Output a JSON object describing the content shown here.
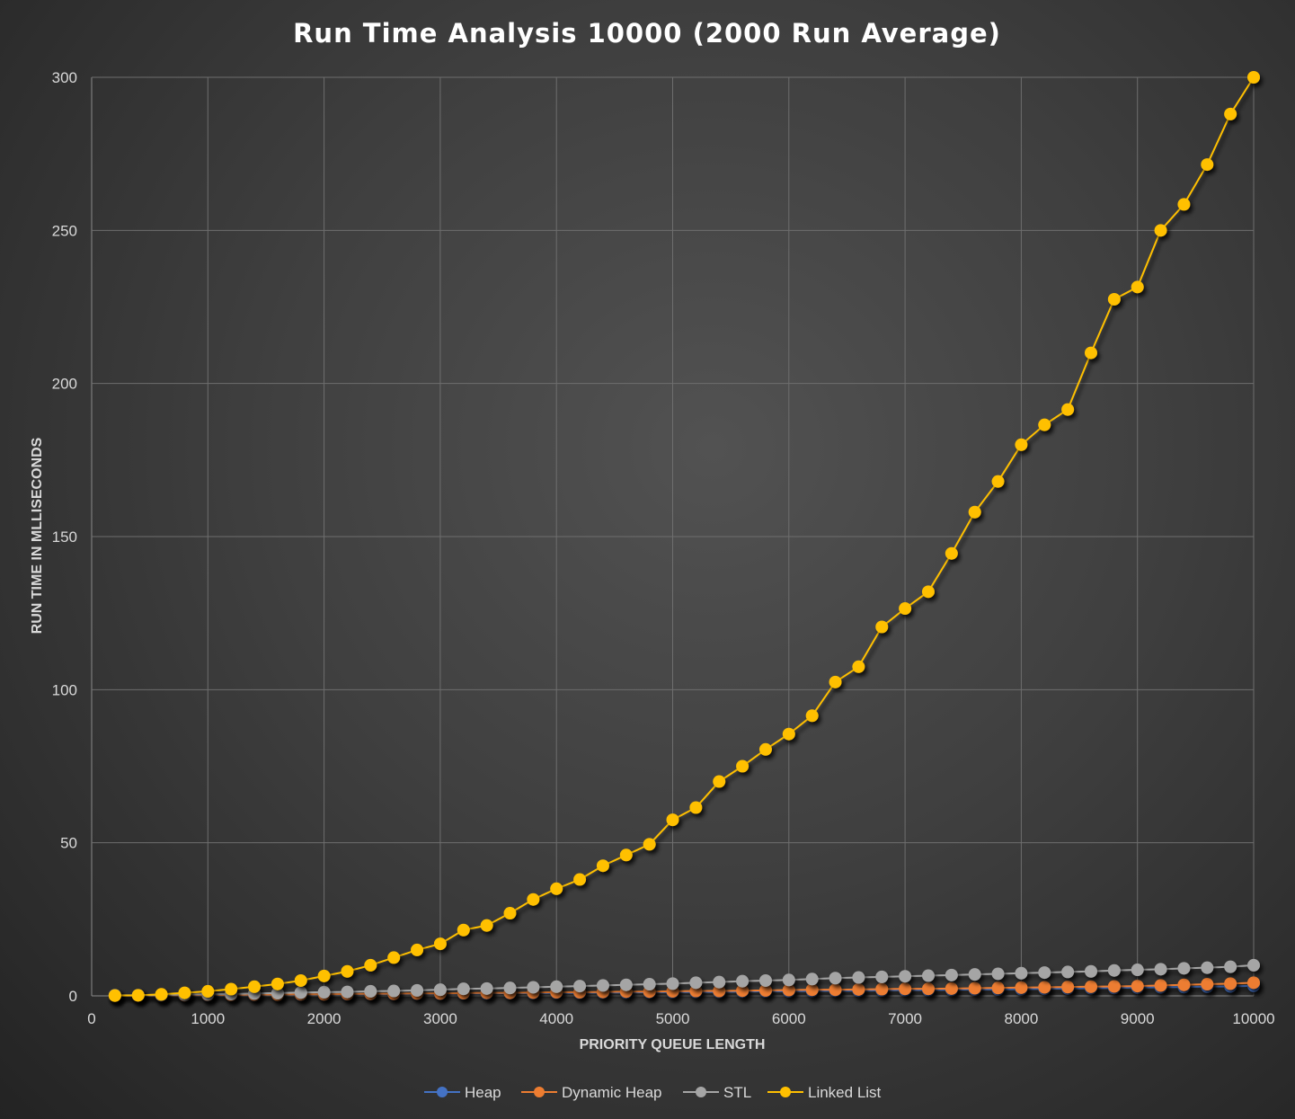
{
  "chart_data": {
    "type": "line",
    "title": "Run Time Analysis 10000 (2000 Run Average)",
    "xlabel": "PRIORITY QUEUE LENGTH",
    "ylabel": "RUN TIME IN MLLISECONDS",
    "xlim": [
      0,
      10000
    ],
    "ylim": [
      0,
      300
    ],
    "xticks": [
      "0",
      "1000",
      "2000",
      "3000",
      "4000",
      "5000",
      "6000",
      "7000",
      "8000",
      "9000",
      "10000"
    ],
    "yticks": [
      "0",
      "50",
      "100",
      "150",
      "200",
      "250",
      "300"
    ],
    "grid": true,
    "legend_position": "bottom",
    "x": [
      200,
      400,
      600,
      800,
      1000,
      1200,
      1400,
      1600,
      1800,
      2000,
      2200,
      2400,
      2600,
      2800,
      3000,
      3200,
      3400,
      3600,
      3800,
      4000,
      4200,
      4400,
      4600,
      4800,
      5000,
      5200,
      5400,
      5600,
      5800,
      6000,
      6200,
      6400,
      6600,
      6800,
      7000,
      7200,
      7400,
      7600,
      7800,
      8000,
      8200,
      8400,
      8600,
      8800,
      9000,
      9200,
      9400,
      9600,
      9800,
      10000
    ],
    "series": [
      {
        "name": "Heap",
        "color": "#4472c4",
        "values": [
          0.1,
          0.1,
          0.1,
          0.2,
          0.2,
          0.3,
          0.3,
          0.4,
          0.4,
          0.5,
          0.5,
          0.6,
          0.6,
          0.7,
          0.7,
          0.8,
          0.8,
          0.9,
          0.9,
          1.0,
          1.0,
          1.1,
          1.1,
          1.2,
          1.2,
          1.3,
          1.3,
          1.4,
          1.5,
          1.5,
          1.6,
          1.7,
          1.7,
          1.8,
          1.9,
          1.9,
          2.0,
          2.1,
          2.1,
          2.2,
          2.3,
          2.4,
          2.5,
          2.6,
          2.7,
          2.8,
          2.9,
          3.0,
          3.1,
          3.3
        ]
      },
      {
        "name": "Dynamic Heap",
        "color": "#ed7d31",
        "values": [
          0.1,
          0.1,
          0.2,
          0.2,
          0.3,
          0.3,
          0.4,
          0.4,
          0.5,
          0.5,
          0.6,
          0.7,
          0.7,
          0.8,
          0.8,
          0.9,
          1.0,
          1.0,
          1.1,
          1.2,
          1.2,
          1.3,
          1.4,
          1.4,
          1.5,
          1.6,
          1.6,
          1.7,
          1.8,
          1.9,
          2.0,
          2.0,
          2.1,
          2.2,
          2.3,
          2.3,
          2.4,
          2.5,
          2.6,
          2.7,
          2.8,
          2.9,
          3.0,
          3.1,
          3.2,
          3.4,
          3.6,
          3.8,
          4.0,
          4.3
        ]
      },
      {
        "name": "STL",
        "color": "#a5a5a5",
        "values": [
          0.2,
          0.2,
          0.3,
          0.4,
          0.5,
          0.6,
          0.8,
          0.9,
          1.1,
          1.2,
          1.3,
          1.5,
          1.6,
          1.8,
          2.0,
          2.3,
          2.4,
          2.6,
          2.8,
          3.0,
          3.2,
          3.4,
          3.6,
          3.8,
          4.0,
          4.3,
          4.5,
          4.8,
          5.0,
          5.2,
          5.5,
          5.8,
          6.0,
          6.2,
          6.4,
          6.6,
          6.8,
          7.0,
          7.2,
          7.4,
          7.6,
          7.8,
          8.0,
          8.3,
          8.5,
          8.7,
          9.0,
          9.2,
          9.5,
          10.0
        ]
      },
      {
        "name": "Linked List",
        "color": "#ffc000",
        "values": [
          0.1,
          0.2,
          0.5,
          1.0,
          1.5,
          2.2,
          3.0,
          3.9,
          5.0,
          6.5,
          8.0,
          10.0,
          12.5,
          15.0,
          17.0,
          21.5,
          23.0,
          27.0,
          31.5,
          35.0,
          38.0,
          42.5,
          46.0,
          49.5,
          57.5,
          61.5,
          70.0,
          75.0,
          80.5,
          85.5,
          91.5,
          102.5,
          107.5,
          120.5,
          126.5,
          132.0,
          144.5,
          158.0,
          168.0,
          180.0,
          186.5,
          191.5,
          210.0,
          227.5,
          231.5,
          250.0,
          258.5,
          271.5,
          288.0,
          300.0
        ]
      }
    ]
  }
}
